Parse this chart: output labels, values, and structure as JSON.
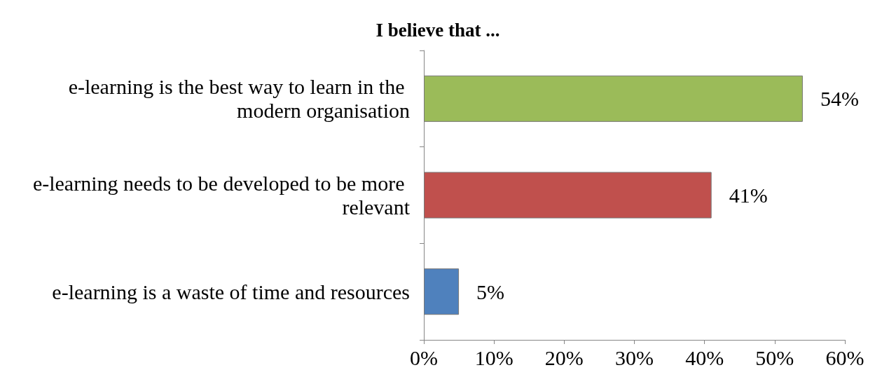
{
  "chart_data": {
    "type": "bar",
    "orientation": "horizontal",
    "title": "I believe that ...",
    "categories": [
      "e-learning is the best way to learn in the modern organisation",
      "e-learning needs to be developed to be more relevant",
      "e-learning is a waste of time and resources"
    ],
    "values": [
      54,
      41,
      5
    ],
    "colors": [
      "#9bbb59",
      "#c0504d",
      "#4f81bd"
    ],
    "value_labels": [
      "54%",
      "41%",
      "5%"
    ],
    "xlim": [
      0,
      60
    ],
    "xticks": [
      {
        "value": 0,
        "label": "0%"
      },
      {
        "value": 10,
        "label": "10%"
      },
      {
        "value": 20,
        "label": "20%"
      },
      {
        "value": 30,
        "label": "30%"
      },
      {
        "value": 40,
        "label": "40%"
      },
      {
        "value": 50,
        "label": "50%"
      },
      {
        "value": 60,
        "label": "60%"
      }
    ],
    "grid": false
  }
}
